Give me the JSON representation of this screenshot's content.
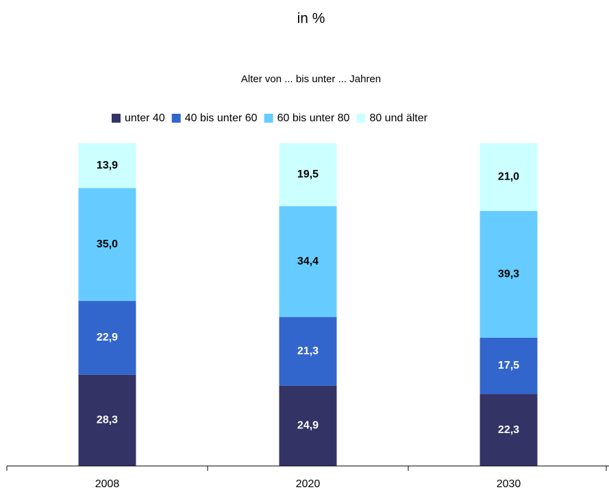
{
  "chart_data": {
    "type": "stacked_bar",
    "title": "in %",
    "legend_title": "Alter von ... bis unter ... Jahren",
    "categories": [
      "2008",
      "2020",
      "2030"
    ],
    "series": [
      {
        "name": "unter 40",
        "color": "#333366",
        "values": [
          28.3,
          24.9,
          22.3
        ],
        "value_labels": [
          "28,3",
          "24,9",
          "22,3"
        ]
      },
      {
        "name": "40 bis unter 60",
        "color": "#3366cc",
        "values": [
          22.9,
          21.3,
          17.5
        ],
        "value_labels": [
          "22,9",
          "21,3",
          "17,5"
        ]
      },
      {
        "name": "60 bis unter 80",
        "color": "#66ccff",
        "values": [
          35.0,
          34.4,
          39.3
        ],
        "value_labels": [
          "35,0",
          "34,4",
          "39,3"
        ]
      },
      {
        "name": "80 und älter",
        "color": "#ccffff",
        "values": [
          13.9,
          19.5,
          21.0
        ],
        "value_labels": [
          "13,9",
          "19,5",
          "21,0"
        ]
      }
    ],
    "legend": "top"
  }
}
